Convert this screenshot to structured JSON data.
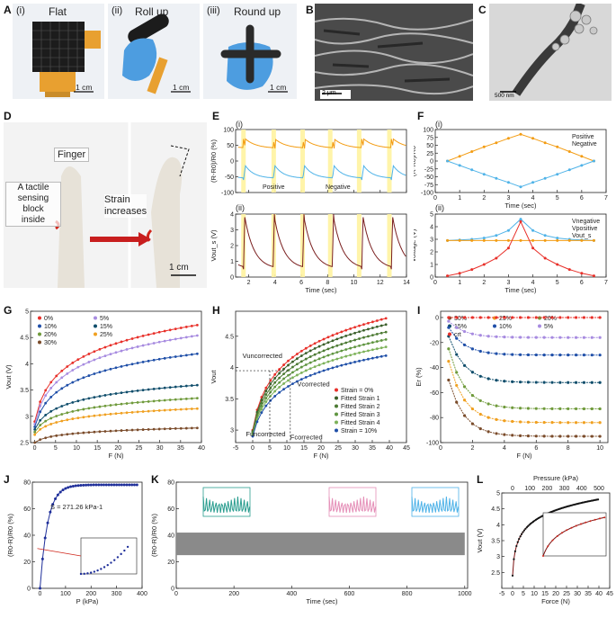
{
  "panels": {
    "A": "A",
    "B": "B",
    "C": "C",
    "D": "D",
    "E": "E",
    "F": "F",
    "G": "G",
    "H": "H",
    "I": "I",
    "J": "J",
    "K": "K",
    "L": "L"
  },
  "photos": {
    "a1_title": "(i)",
    "a1_caption": "Flat",
    "a1_scale": "1 cm",
    "a2_title": "(ii)",
    "a2_caption": "Roll up",
    "a2_scale": "1 cm",
    "a3_title": "(iii)",
    "a3_caption": "Round up",
    "a3_scale": "1 cm",
    "b_scale": "2 μm",
    "c_scale": "500 nm",
    "d_finger": "Finger",
    "d_block": "A tactile\nsensing block\ninside",
    "d_strain": "Strain\nincreases",
    "d_scale": "1 cm"
  },
  "colors": {
    "positive": "#f39c12",
    "negative": "#4fb3e8",
    "vout": "#7a1f1f",
    "highlight": "#fff3a0",
    "red": "#e8302a"
  },
  "chart_data": [
    {
      "id": "E-i",
      "type": "line",
      "sub": "(i)",
      "ylabel": "(R-R0)/R0 (%)",
      "xlabel": "",
      "ylim": [
        -100,
        100
      ],
      "yticks": [
        -100,
        -50,
        0,
        50,
        100
      ],
      "xlim": [
        1,
        14
      ],
      "xticks": [
        2,
        4,
        6,
        8,
        10,
        12,
        14
      ],
      "highlight_x": [
        1.6,
        3.9,
        6.1,
        8.2,
        10.4,
        12.7
      ],
      "legend": [
        "Positive",
        "Negative"
      ]
    },
    {
      "id": "E-ii",
      "type": "line",
      "sub": "(ii)",
      "ylabel": "Vout_s (V)",
      "xlabel": "Time (sec)",
      "ylim": [
        0,
        4
      ],
      "yticks": [
        0,
        1,
        2,
        3,
        4
      ],
      "xlim": [
        1,
        14
      ],
      "xticks": [
        2,
        4,
        6,
        8,
        10,
        12,
        14
      ]
    },
    {
      "id": "F-i",
      "type": "line",
      "sub": "(i)",
      "ylabel": "(R-R0)/R0",
      "xlabel": "Time (sec)",
      "ylim": [
        -100,
        100
      ],
      "yticks": [
        -100,
        -75,
        -50,
        -25,
        0,
        25,
        50,
        75,
        100
      ],
      "xlim": [
        0,
        7
      ],
      "xticks": [
        0,
        1,
        2,
        3,
        4,
        5,
        6,
        7
      ],
      "x": [
        0.5,
        1,
        1.5,
        2,
        2.5,
        3,
        3.5,
        4,
        4.5,
        5,
        5.5,
        6,
        6.5
      ],
      "series": [
        {
          "name": "Positive",
          "values": [
            0,
            15,
            30,
            45,
            58,
            72,
            85,
            72,
            58,
            45,
            30,
            15,
            0
          ]
        },
        {
          "name": "Negative",
          "values": [
            0,
            -14,
            -28,
            -42,
            -55,
            -68,
            -82,
            -68,
            -55,
            -42,
            -28,
            -14,
            0
          ]
        }
      ]
    },
    {
      "id": "F-ii",
      "type": "line",
      "sub": "(ii)",
      "ylabel": "Voltage (V)",
      "xlabel": "Time (sec)",
      "ylim": [
        0,
        5
      ],
      "yticks": [
        0,
        1,
        2,
        3,
        4,
        5
      ],
      "xlim": [
        0,
        7
      ],
      "xticks": [
        0,
        1,
        2,
        3,
        4,
        5,
        6,
        7
      ],
      "x": [
        0.5,
        1,
        1.5,
        2,
        2.5,
        3,
        3.5,
        4,
        4.5,
        5,
        5.5,
        6,
        6.5
      ],
      "series": [
        {
          "name": "Vnegative",
          "values": [
            2.9,
            2.95,
            3.0,
            3.1,
            3.3,
            3.7,
            4.6,
            3.7,
            3.3,
            3.1,
            3.0,
            2.95,
            2.9
          ]
        },
        {
          "name": "Vpositive",
          "values": [
            2.9,
            2.9,
            2.9,
            2.9,
            2.9,
            2.9,
            2.9,
            2.9,
            2.9,
            2.9,
            2.9,
            2.9,
            2.9
          ]
        },
        {
          "name": "Vout_s",
          "values": [
            0.1,
            0.3,
            0.6,
            1.0,
            1.5,
            2.3,
            4.4,
            2.3,
            1.5,
            1.0,
            0.6,
            0.3,
            0.1
          ]
        }
      ]
    },
    {
      "id": "G",
      "type": "line",
      "ylabel": "Vout (V)",
      "xlabel": "F (N)",
      "ylim": [
        2.5,
        5.0
      ],
      "yticks": [
        2.5,
        3.0,
        3.5,
        4.0,
        4.5,
        5.0
      ],
      "xlim": [
        -1,
        40
      ],
      "xticks": [
        0,
        5,
        10,
        15,
        20,
        25,
        30,
        35,
        40
      ],
      "series": [
        {
          "name": "0%",
          "color": "#e8302a",
          "v0": 2.9,
          "v40": 4.75
        },
        {
          "name": "5%",
          "color": "#a78be0",
          "v0": 2.85,
          "v40": 4.55
        },
        {
          "name": "10%",
          "color": "#1f4fa8",
          "v0": 2.8,
          "v40": 4.2
        },
        {
          "name": "15%",
          "color": "#0f4d6b",
          "v0": 2.75,
          "v40": 3.6
        },
        {
          "name": "20%",
          "color": "#6f9a3b",
          "v0": 2.7,
          "v40": 3.35
        },
        {
          "name": "25%",
          "color": "#f0a020",
          "v0": 2.65,
          "v40": 3.15
        },
        {
          "name": "30%",
          "color": "#7a4b2a",
          "v0": 2.5,
          "v40": 2.78
        }
      ]
    },
    {
      "id": "H",
      "type": "line",
      "ylabel": "Vout",
      "xlabel": "F (N)",
      "ylim": [
        2.8,
        4.9
      ],
      "yticks": [
        3.0,
        3.5,
        4.0,
        4.5
      ],
      "xlim": [
        -5,
        45
      ],
      "xticks": [
        -5,
        0,
        5,
        10,
        15,
        20,
        25,
        30,
        35,
        40,
        45
      ],
      "annotations": [
        "Vuncorrected",
        "Vcorrected",
        "Funcorrected",
        "Fcorrected"
      ],
      "series": [
        {
          "name": "Strain = 0%",
          "color": "#e8302a",
          "v0": 3.0,
          "v40": 4.8
        },
        {
          "name": "Fitted Strain 1",
          "color": "#3a5f2a",
          "v0": 2.98,
          "v40": 4.7
        },
        {
          "name": "Fitted Strain 2",
          "color": "#4c7a33",
          "v0": 2.96,
          "v40": 4.58
        },
        {
          "name": "Fitted Strain 3",
          "color": "#5f9540",
          "v0": 2.94,
          "v40": 4.46
        },
        {
          "name": "Fitted Strain 4",
          "color": "#7db25a",
          "v0": 2.92,
          "v40": 4.34
        },
        {
          "name": "Strain = 10%",
          "color": "#1f4fa8",
          "v0": 2.9,
          "v40": 4.2
        }
      ]
    },
    {
      "id": "I",
      "type": "line",
      "ylabel": "Er (%)",
      "xlabel": "F (N)",
      "ylim": [
        -100,
        5
      ],
      "yticks": [
        -100,
        -80,
        -60,
        -40,
        -20,
        0
      ],
      "xlim": [
        0,
        10.5
      ],
      "xticks": [
        0,
        2,
        4,
        6,
        8,
        10
      ],
      "series": [
        {
          "name": "30%",
          "color": "#7a4b2a",
          "v0": -50,
          "vend": -95
        },
        {
          "name": "25%",
          "color": "#f0a020",
          "v0": -35,
          "vend": -84
        },
        {
          "name": "20%",
          "color": "#6f9a3b",
          "v0": -25,
          "vend": -73
        },
        {
          "name": "15%",
          "color": "#0f4d6b",
          "v0": -15,
          "vend": -52
        },
        {
          "name": "10%",
          "color": "#1f4fa8",
          "v0": -8,
          "vend": -30
        },
        {
          "name": "5%",
          "color": "#a78be0",
          "v0": -3,
          "vend": -16
        },
        {
          "name": "crt",
          "color": "#e8302a",
          "v0": 0,
          "vend": 0
        }
      ]
    },
    {
      "id": "J",
      "type": "line",
      "ylabel": "(R0-R)/R0 (%)",
      "xlabel": "P (kPa)",
      "ylim": [
        0,
        80
      ],
      "yticks": [
        0,
        20,
        40,
        60,
        80
      ],
      "xlim": [
        -30,
        400
      ],
      "xticks": [
        0,
        100,
        200,
        300,
        400
      ],
      "annotation": "S = 271.26 kPa-1",
      "inset": {
        "xlim": [
          0,
          2
        ],
        "xticks": [
          0,
          1,
          2
        ],
        "ylim": [
          0,
          30
        ],
        "yticks": [
          0,
          10,
          20,
          30
        ]
      }
    },
    {
      "id": "K",
      "type": "line",
      "ylabel": "(R0-R)/R0 (%)",
      "xlabel": "Time (sec)",
      "ylim": [
        0,
        80
      ],
      "yticks": [
        0,
        20,
        40,
        60,
        80
      ],
      "xlim": [
        0,
        1010
      ],
      "xticks": [
        0,
        200,
        400,
        600,
        800,
        1000
      ],
      "band": [
        25,
        42
      ]
    },
    {
      "id": "L",
      "type": "line",
      "ylabel": "Vout (V)",
      "xlabel": "Force (N)",
      "x2label": "Pressure (kPa)",
      "ylim": [
        2.0,
        5.0
      ],
      "yticks": [
        2.5,
        3.0,
        3.5,
        4.0,
        4.5,
        5.0
      ],
      "xlim": [
        -5,
        45
      ],
      "xticks": [
        -5,
        0,
        5,
        10,
        15,
        20,
        25,
        30,
        35,
        40,
        45
      ],
      "x2ticks": [
        0,
        100,
        200,
        300,
        400,
        500
      ],
      "inset": {
        "xticks": [
          0.0,
          0.5,
          1.0,
          1.5,
          2.0
        ],
        "yticks": [
          2.5,
          3.0,
          3.5,
          4.0
        ]
      }
    }
  ]
}
